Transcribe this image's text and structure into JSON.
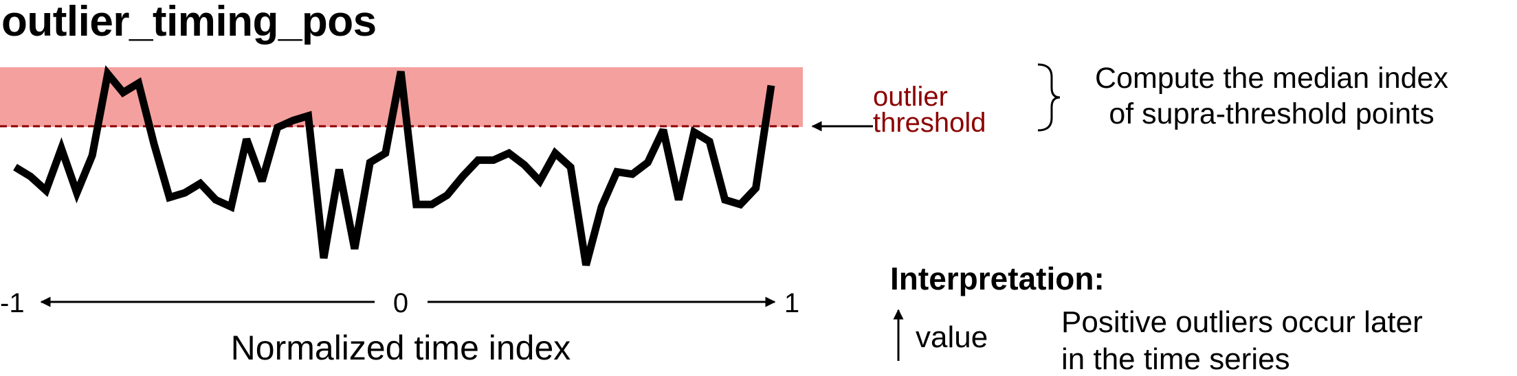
{
  "title": "outlier_timing_pos",
  "threshold_label": [
    "outlier",
    "threshold"
  ],
  "note": [
    "Compute the median index",
    "of supra-threshold points"
  ],
  "axis": {
    "label": "Normalized time index",
    "ticks": [
      "-1",
      "0",
      "1"
    ],
    "range": [
      -1,
      1
    ]
  },
  "interpretation": {
    "heading": "Interpretation:",
    "key": "value",
    "text": [
      "Positive outliers occur later",
      "in the time series"
    ]
  },
  "colors": {
    "region": "#f4a09e",
    "threshold": "#8b0000",
    "series": "#000000"
  },
  "chart_data": {
    "type": "line",
    "threshold": 0.72,
    "ylim": [
      0,
      1
    ],
    "x_range": [
      -1,
      1
    ],
    "values": [
      0.46,
      0.42,
      0.36,
      0.54,
      0.35,
      0.51,
      0.86,
      0.78,
      0.82,
      0.56,
      0.33,
      0.35,
      0.39,
      0.32,
      0.29,
      0.58,
      0.4,
      0.63,
      0.66,
      0.68,
      0.07,
      0.45,
      0.11,
      0.48,
      0.52,
      0.87,
      0.3,
      0.3,
      0.34,
      0.42,
      0.49,
      0.49,
      0.52,
      0.47,
      0.4,
      0.52,
      0.46,
      0.04,
      0.29,
      0.44,
      0.43,
      0.48,
      0.62,
      0.32,
      0.61,
      0.57,
      0.32,
      0.3,
      0.37,
      0.81
    ]
  }
}
